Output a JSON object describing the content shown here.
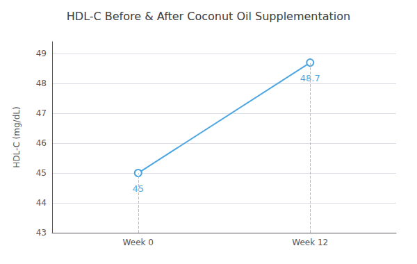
{
  "chart_data": {
    "type": "line",
    "title": "HDL-C Before & After Coconut Oil Supplementation",
    "categories": [
      "Week 0",
      "Week 12"
    ],
    "values": [
      45,
      48.7
    ],
    "color": "#4da6e0",
    "marker": "circle",
    "ylabel": "HDL-C (mg/dL)",
    "ylim": [
      43,
      49.4
    ],
    "yticks": [
      43,
      44,
      45,
      46,
      47,
      48,
      49
    ],
    "grid": true,
    "data_labels": true
  }
}
